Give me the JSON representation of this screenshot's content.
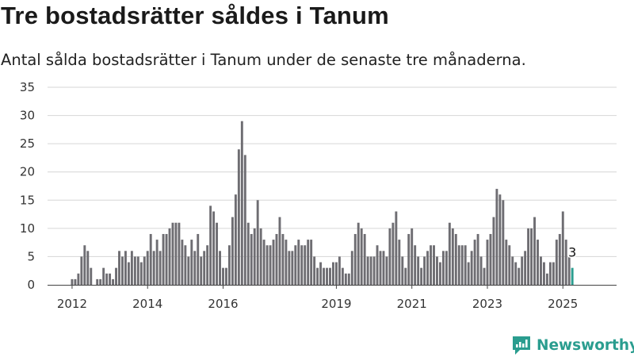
{
  "title": "Tre bostadsrätter såldes i Tanum",
  "subtitle": "Antal sålda bostadsrätter i Tanum under de senaste tre månaderna.",
  "brand": {
    "name": "Newsworthy",
    "icon": "newsworthy-logo-icon"
  },
  "colors": {
    "bar": "#6e6d72",
    "highlight": "#2a9d8f",
    "grid": "#d6d6d6",
    "axis": "#444444"
  },
  "chart_data": {
    "type": "bar",
    "title": "",
    "xlabel": "",
    "ylabel": "",
    "ylim": [
      0,
      35
    ],
    "yticks": [
      0,
      5,
      10,
      15,
      20,
      25,
      30,
      35
    ],
    "grid": true,
    "start": "2012-01",
    "xticks": [
      {
        "label": "2012",
        "date": "2012-01"
      },
      {
        "label": "2014",
        "date": "2014-01"
      },
      {
        "label": "2016",
        "date": "2016-01"
      },
      {
        "label": "2019",
        "date": "2019-01"
      },
      {
        "label": "2021",
        "date": "2021-01"
      },
      {
        "label": "2023",
        "date": "2023-01"
      },
      {
        "label": "2025",
        "date": "2025-01"
      }
    ],
    "values": [
      1,
      1,
      2,
      5,
      7,
      6,
      3,
      0,
      1,
      1,
      3,
      2,
      2,
      1,
      3,
      6,
      5,
      6,
      4,
      6,
      5,
      5,
      4,
      5,
      6,
      9,
      6,
      8,
      6,
      9,
      9,
      10,
      11,
      11,
      11,
      8,
      7,
      5,
      8,
      6,
      9,
      5,
      6,
      7,
      14,
      13,
      11,
      6,
      3,
      3,
      7,
      12,
      16,
      24,
      29,
      23,
      11,
      9,
      10,
      15,
      10,
      8,
      7,
      7,
      8,
      9,
      12,
      9,
      8,
      6,
      6,
      7,
      8,
      7,
      7,
      8,
      8,
      5,
      3,
      4,
      3,
      3,
      3,
      4,
      4,
      5,
      3,
      2,
      2,
      6,
      9,
      11,
      10,
      9,
      5,
      5,
      5,
      7,
      6,
      6,
      5,
      10,
      11,
      13,
      8,
      5,
      3,
      9,
      10,
      7,
      5,
      3,
      5,
      6,
      7,
      7,
      5,
      4,
      6,
      6,
      11,
      10,
      9,
      7,
      7,
      7,
      4,
      6,
      8,
      9,
      5,
      3,
      8,
      9,
      12,
      17,
      16,
      15,
      8,
      7,
      5,
      4,
      3,
      5,
      6,
      10,
      10,
      12,
      8,
      5,
      4,
      2,
      4,
      4,
      8,
      9,
      13,
      8,
      5,
      3
    ],
    "highlight_last": true,
    "last_label": "3"
  }
}
